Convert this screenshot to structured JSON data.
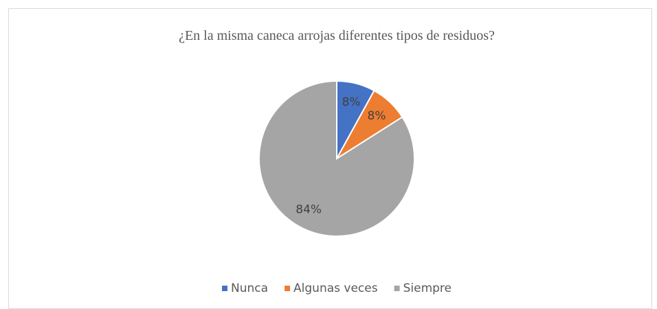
{
  "chart_data": {
    "type": "pie",
    "title": "¿En la misma caneca arrojas diferentes tipos de residuos?",
    "categories": [
      "Nunca",
      "Algunas veces",
      "Siempre"
    ],
    "values": [
      8,
      8,
      84
    ],
    "value_labels": [
      "8%",
      "8%",
      "84%"
    ],
    "colors": [
      "#4472c4",
      "#ed7d31",
      "#a5a5a5"
    ],
    "legend": "bottom"
  }
}
